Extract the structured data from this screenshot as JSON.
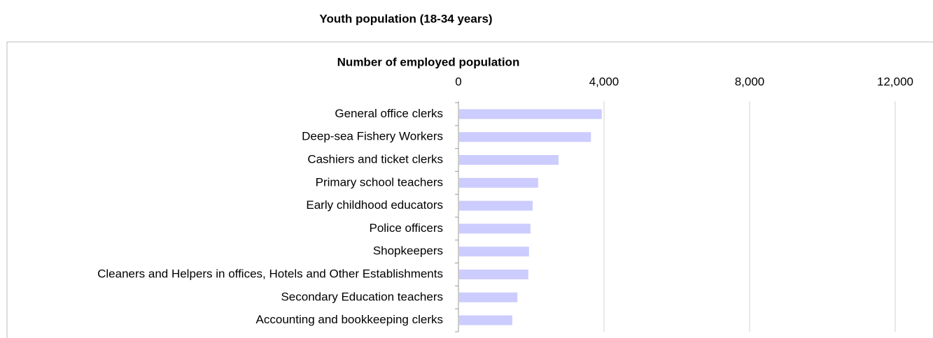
{
  "chart_data": {
    "type": "bar",
    "orientation": "horizontal",
    "title": "Youth population (18-34 years)",
    "x_label": "Number of employed population",
    "categories": [
      "General office clerks",
      "Deep-sea Fishery Workers",
      "Cashiers and ticket clerks",
      "Primary school teachers",
      "Early childhood educators",
      "Police officers",
      "Shopkeepers",
      "Cleaners and Helpers in offices, Hotels and Other Establishments",
      "Secondary Education teachers",
      "Accounting and bookkeeping clerks"
    ],
    "values": [
      3920,
      3620,
      2730,
      2170,
      2020,
      1960,
      1920,
      1900,
      1600,
      1460
    ],
    "color": "#ccccff",
    "xlim": [
      0,
      12000
    ],
    "xticks": [
      0,
      {
        "value": 4000,
        "label": "4,000"
      },
      {
        "value": 8000,
        "label": "8,000"
      },
      {
        "value": 12000,
        "label": "12,000"
      }
    ],
    "grid": true
  }
}
